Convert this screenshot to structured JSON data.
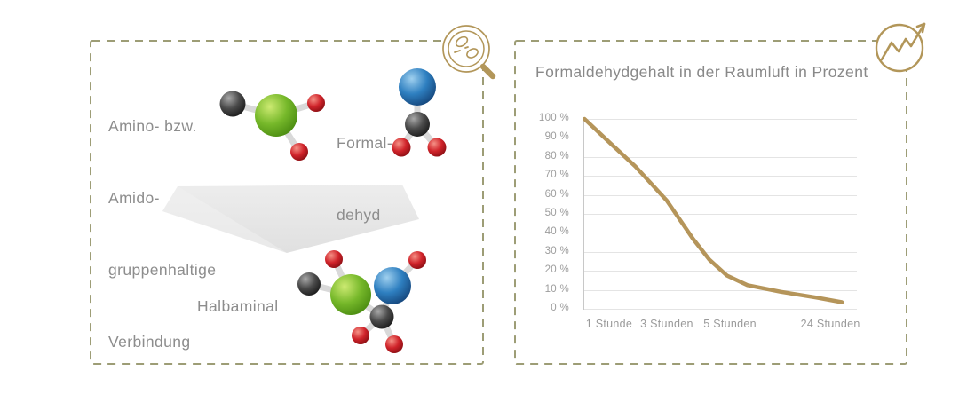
{
  "accent_color": "#b49459",
  "panel_border_color": "#9d9d76",
  "left_panel": {
    "reactant_lines": [
      "Amino- bzw.",
      "Amido-",
      "gruppenhaltige",
      "Verbindung"
    ],
    "formaldehyde_lines": [
      "Formal-",
      "dehyd"
    ],
    "product_label": "Halbaminal",
    "molecule_colors": {
      "green": "#72b626",
      "blue": "#2e7fc0",
      "red": "#d0232a",
      "dark": "#404040",
      "bond": "#d9d9d9"
    },
    "arrow_color": "#e6e6e6"
  },
  "chart_data": {
    "type": "line",
    "title": "Formaldehydgehalt in der Raumluft in Prozent",
    "xlabel": "",
    "ylabel": "",
    "ylim": [
      0,
      100
    ],
    "grid": true,
    "legend": "none",
    "line_color": "#b5955a",
    "ytick_labels": [
      "100 %",
      "90 %",
      "80 %",
      "70 %",
      "60 %",
      "50 %",
      "40 %",
      "30 %",
      "20 %",
      "10 %",
      "0 %"
    ],
    "categories": [
      "1 Stunde",
      "3 Stunden",
      "5 Stunden",
      "24 Stunden"
    ],
    "category_positions": [
      0.094,
      0.305,
      0.536,
      0.903
    ],
    "values_at_categories": [
      87,
      57,
      15,
      3
    ],
    "start_value": 100,
    "curve_points": [
      {
        "t": 0.004,
        "v": 100
      },
      {
        "t": 0.1,
        "v": 87
      },
      {
        "t": 0.19,
        "v": 75
      },
      {
        "t": 0.305,
        "v": 57
      },
      {
        "t": 0.4,
        "v": 37
      },
      {
        "t": 0.46,
        "v": 26
      },
      {
        "t": 0.525,
        "v": 17.5
      },
      {
        "t": 0.6,
        "v": 12.5
      },
      {
        "t": 0.72,
        "v": 9
      },
      {
        "t": 0.85,
        "v": 6
      },
      {
        "t": 0.945,
        "v": 3.5
      }
    ]
  }
}
